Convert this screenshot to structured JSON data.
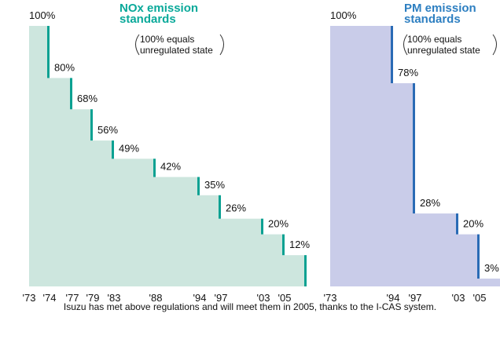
{
  "chart_data": [
    {
      "type": "step-bar",
      "title": "NOx emission standards",
      "annotation": "100% equals unregulated state",
      "categories": [
        "'73",
        "'74",
        "'77",
        "'79",
        "'83",
        "'88",
        "'94",
        "'97",
        "'03",
        "'05"
      ],
      "values": [
        100,
        80,
        68,
        56,
        49,
        42,
        35,
        26,
        20,
        12
      ],
      "value_labels": [
        "100%",
        "80%",
        "68%",
        "56%",
        "49%",
        "42%",
        "35%",
        "26%",
        "20%",
        "12%"
      ],
      "ylim": [
        0,
        100
      ],
      "color": "#cde6de",
      "edge_color": "#0aa192",
      "title_color": "#0aa99a"
    },
    {
      "type": "step-bar",
      "title": "PM emission standards",
      "annotation": "100% equals unregulated state",
      "categories": [
        "'73",
        "'94",
        "'97",
        "'03",
        "'05"
      ],
      "values": [
        100,
        78,
        28,
        20,
        3
      ],
      "value_labels": [
        "100%",
        "78%",
        "28%",
        "20%",
        "3%"
      ],
      "ylim": [
        0,
        100
      ],
      "color": "#c9cce9",
      "edge_color": "#2a6bb5",
      "title_color": "#2d7fc1"
    }
  ],
  "caption": "Isuzu has met above regulations and will meet them in 2005, thanks to the I-CAS system."
}
